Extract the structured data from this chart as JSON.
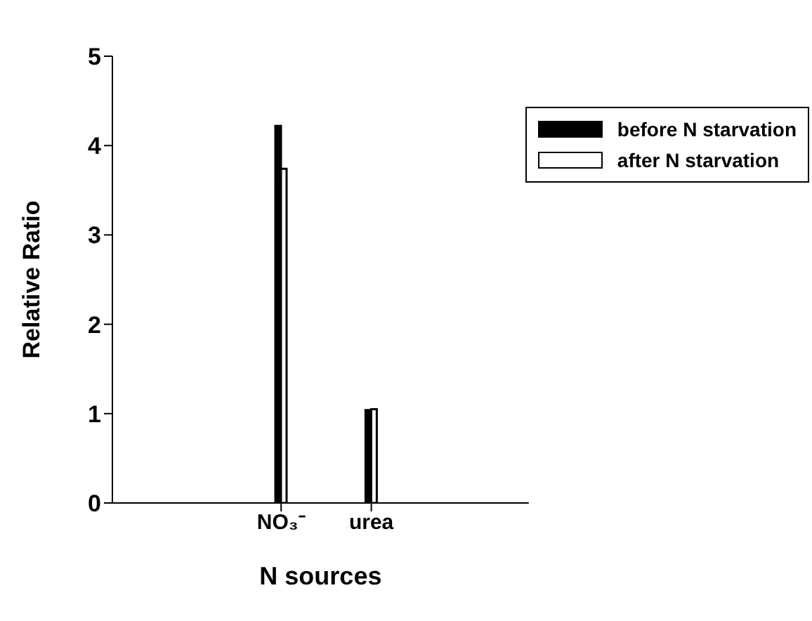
{
  "chart_data": {
    "type": "bar",
    "xlabel": "N sources",
    "ylabel": "Relative Ratio",
    "categories": [
      "NO₃⁻",
      "urea"
    ],
    "series": [
      {
        "name": "before N starvation",
        "color": "#000000",
        "values": [
          4.22,
          1.04
        ]
      },
      {
        "name": "after N starvation",
        "color": "#ffffff",
        "values": [
          3.74,
          1.05
        ]
      }
    ],
    "ylim": [
      0,
      5
    ],
    "yticks": [
      0,
      1,
      2,
      3,
      4,
      5
    ],
    "grid": false,
    "legend": "top right"
  }
}
